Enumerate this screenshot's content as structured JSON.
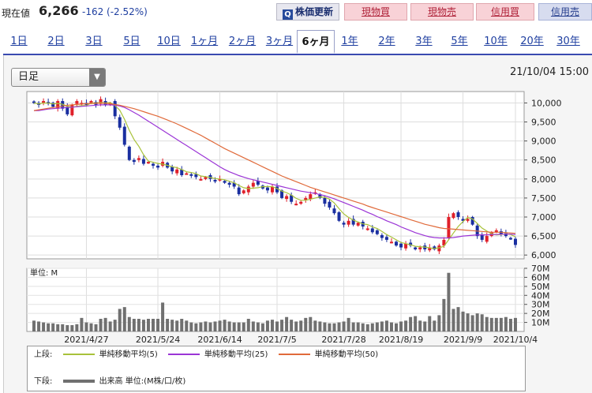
{
  "header": {
    "price_label": "現在値",
    "price": "6,266",
    "change": "-162 (-2.52%)",
    "refresh": "株価更新",
    "buttons": [
      "現物買",
      "現物売",
      "信用買",
      "信用売"
    ]
  },
  "tabs": [
    "1日",
    "2日",
    "3日",
    "5日",
    "10日",
    "1ヶ月",
    "2ヶ月",
    "3ヶ月",
    "6ヶ月",
    "1年",
    "2年",
    "3年",
    "5年",
    "10年",
    "20年",
    "30年"
  ],
  "active_tab": "6ヶ月",
  "period_select": "日足",
  "datetime": "21/10/04 15:00",
  "colors": {
    "up": "#e0202a",
    "down": "#1a2fa0",
    "ma5": "#a8c23a",
    "ma25": "#9b35d6",
    "ma50": "#e06a3a",
    "volume": "#707070"
  },
  "chart_data": [
    {
      "type": "candlestick",
      "ylim": [
        5900,
        10300
      ],
      "y_ticks": [
        "10,000",
        "9,500",
        "9,000",
        "8,500",
        "8,000",
        "7,500",
        "7,000",
        "6,500",
        "6,000"
      ],
      "x_labels": [
        "2021/4/27",
        "2021/5/24",
        "2021/6/14",
        "2021/7/5",
        "2021/7/28",
        "2021/8/19",
        "2021/9/9",
        "2021/10/4"
      ],
      "closes": [
        10000,
        9950,
        10050,
        9980,
        9900,
        10050,
        9850,
        9700,
        9950,
        10050,
        10000,
        9950,
        10050,
        9950,
        10100,
        9950,
        10000,
        9650,
        9350,
        8900,
        8500,
        8450,
        8550,
        8400,
        8450,
        8350,
        8300,
        8450,
        8300,
        8200,
        8250,
        8100,
        8150,
        8100,
        8050,
        8000,
        8050,
        8000,
        7950,
        8000,
        7900,
        7850,
        7800,
        7600,
        7700,
        7800,
        7900,
        7850,
        7750,
        7700,
        7800,
        7650,
        7500,
        7550,
        7400,
        7350,
        7400,
        7500,
        7600,
        7650,
        7500,
        7350,
        7250,
        7100,
        6900,
        6800,
        6900,
        6800,
        6850,
        6750,
        6700,
        6600,
        6550,
        6450,
        6400,
        6350,
        6250,
        6200,
        6300,
        6250,
        6150,
        6200,
        6150,
        6200,
        6150,
        6250,
        6400,
        7000,
        7100,
        7000,
        6900,
        6950,
        6800,
        6500,
        6400,
        6500,
        6600,
        6650,
        6550,
        6500,
        6428,
        6266
      ],
      "ma5": [
        10000,
        9975,
        10000,
        9995,
        9976,
        9986,
        9966,
        9916,
        9890,
        9910,
        9930,
        9930,
        10000,
        10000,
        10010,
        10000,
        10010,
        9930,
        9810,
        9570,
        9280,
        9040,
        8860,
        8640,
        8470,
        8440,
        8410,
        8390,
        8360,
        8320,
        8300,
        8250,
        8190,
        8170,
        8140,
        8080,
        8060,
        8040,
        8010,
        8000,
        7980,
        7940,
        7900,
        7830,
        7770,
        7750,
        7760,
        7770,
        7800,
        7800,
        7800,
        7750,
        7680,
        7640,
        7580,
        7490,
        7440,
        7440,
        7470,
        7500,
        7530,
        7520,
        7470,
        7370,
        7220,
        7080,
        6990,
        6920,
        6870,
        6820,
        6800,
        6740,
        6700,
        6620,
        6540,
        6470,
        6400,
        6330,
        6300,
        6270,
        6230,
        6220,
        6210,
        6190,
        6170,
        6190,
        6230,
        6400,
        6580,
        6750,
        6880,
        6990,
        6950,
        6830,
        6710,
        6630,
        6560,
        6530,
        6540,
        6560,
        6540,
        6480
      ],
      "ma25": [
        9800,
        9800,
        9820,
        9840,
        9850,
        9860,
        9870,
        9880,
        9890,
        9900,
        9910,
        9920,
        9930,
        9940,
        9950,
        9950,
        9950,
        9940,
        9920,
        9880,
        9820,
        9750,
        9680,
        9600,
        9520,
        9440,
        9360,
        9280,
        9200,
        9120,
        9040,
        8960,
        8880,
        8800,
        8720,
        8640,
        8560,
        8480,
        8400,
        8320,
        8250,
        8190,
        8140,
        8090,
        8050,
        8010,
        7980,
        7950,
        7920,
        7890,
        7860,
        7830,
        7800,
        7770,
        7740,
        7710,
        7680,
        7660,
        7640,
        7620,
        7590,
        7560,
        7520,
        7480,
        7430,
        7380,
        7330,
        7280,
        7230,
        7180,
        7120,
        7070,
        7010,
        6960,
        6900,
        6850,
        6800,
        6740,
        6690,
        6640,
        6590,
        6550,
        6510,
        6480,
        6460,
        6450,
        6450,
        6450,
        6460,
        6480,
        6500,
        6510,
        6520,
        6530,
        6530,
        6530,
        6540,
        6540,
        6550,
        6550,
        6550,
        6540
      ],
      "ma50": [
        9800,
        9820,
        9840,
        9860,
        9880,
        9900,
        9920,
        9940,
        9950,
        9960,
        9970,
        9980,
        9985,
        9990,
        9995,
        9990,
        9980,
        9960,
        9940,
        9910,
        9880,
        9850,
        9810,
        9770,
        9730,
        9690,
        9650,
        9600,
        9550,
        9500,
        9450,
        9390,
        9330,
        9270,
        9210,
        9150,
        9080,
        9010,
        8940,
        8870,
        8800,
        8740,
        8680,
        8620,
        8560,
        8500,
        8440,
        8380,
        8320,
        8260,
        8200,
        8140,
        8080,
        8030,
        7980,
        7930,
        7880,
        7830,
        7780,
        7740,
        7700,
        7660,
        7620,
        7580,
        7540,
        7500,
        7460,
        7420,
        7380,
        7340,
        7290,
        7250,
        7210,
        7170,
        7130,
        7090,
        7050,
        7010,
        6970,
        6930,
        6890,
        6850,
        6810,
        6780,
        6750,
        6720,
        6700,
        6690,
        6680,
        6670,
        6660,
        6650,
        6640,
        6630,
        6620,
        6610,
        6600,
        6600,
        6600,
        6590,
        6580,
        6570
      ]
    },
    {
      "type": "bar",
      "unit_label": "単位: M",
      "ylim": [
        0,
        70
      ],
      "y_ticks": [
        "70M",
        "60M",
        "50M",
        "40M",
        "30M",
        "20M",
        "10M"
      ],
      "values": [
        12,
        11,
        10,
        9,
        9,
        8,
        8,
        7,
        7,
        8,
        15,
        10,
        9,
        8,
        14,
        15,
        11,
        13,
        25,
        27,
        16,
        14,
        14,
        13,
        14,
        14,
        14,
        32,
        14,
        13,
        12,
        14,
        12,
        10,
        9,
        10,
        11,
        10,
        11,
        12,
        13,
        11,
        10,
        10,
        10,
        14,
        11,
        10,
        9,
        12,
        13,
        11,
        13,
        16,
        13,
        11,
        12,
        15,
        16,
        12,
        11,
        10,
        9,
        9,
        10,
        11,
        15,
        10,
        10,
        9,
        8,
        9,
        10,
        11,
        12,
        10,
        9,
        11,
        12,
        16,
        17,
        12,
        11,
        17,
        12,
        18,
        36,
        65,
        25,
        27,
        22,
        20,
        18,
        20,
        19,
        16,
        15,
        15,
        15,
        16,
        14,
        15
      ]
    }
  ],
  "legend": {
    "upper_label": "上段:",
    "lower_label": "下段:",
    "ma5": "単純移動平均(5)",
    "ma25": "単純移動平均(25)",
    "ma50": "単純移動平均(50)",
    "volume": "出来高 単位:(M株/口/枚)"
  }
}
